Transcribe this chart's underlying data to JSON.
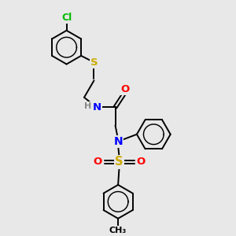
{
  "background_color": "#e8e8e8",
  "bond_color": "#000000",
  "atom_colors": {
    "Cl": "#00bb00",
    "S": "#ccaa00",
    "N": "#0000ff",
    "O": "#ff0000",
    "H": "#888888",
    "C": "#000000"
  },
  "line_width": 1.4,
  "font_size": 8.5,
  "figsize": [
    3.0,
    3.0
  ],
  "dpi": 100
}
